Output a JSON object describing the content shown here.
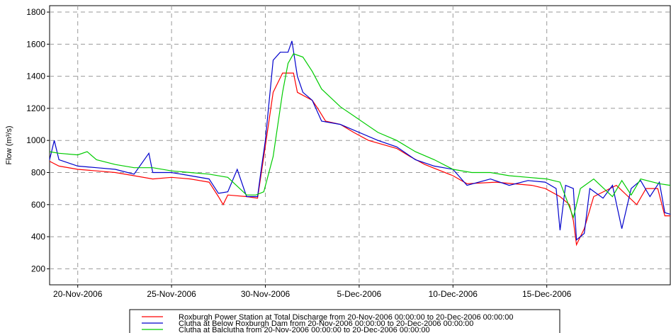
{
  "chart_data": {
    "type": "line",
    "ylabel": "Flow (m³/s)",
    "xlim": [
      "2006-11-18 12:00",
      "2006-12-21 14:00"
    ],
    "xticks": [
      {
        "value": "2006-11-20 00:00",
        "label": "20-Nov-2006"
      },
      {
        "value": "2006-11-25 00:00",
        "label": "25-Nov-2006"
      },
      {
        "value": "2006-11-30 00:00",
        "label": "30-Nov-2006"
      },
      {
        "value": "2006-12-05 00:00",
        "label": "5-Dec-2006"
      },
      {
        "value": "2006-12-10 00:00",
        "label": "10-Dec-2006"
      },
      {
        "value": "2006-12-15 00:00",
        "label": "15-Dec-2006"
      }
    ],
    "ylim": [
      100,
      1840
    ],
    "yticks": [
      200,
      400,
      600,
      800,
      1000,
      1200,
      1400,
      1600,
      1800
    ],
    "grid": true,
    "series": [
      {
        "name": "Roxburgh Power Station at Total Discharge from 20-Nov-2006 00:00:00 to 20-Dec-2006 00:00:00",
        "color": "#ff0000",
        "x": [
          "2006-11-18 12:00",
          "2006-11-19 00:00",
          "2006-11-20 00:00",
          "2006-11-21 00:00",
          "2006-11-22 00:00",
          "2006-11-23 00:00",
          "2006-11-24 00:00",
          "2006-11-25 00:00",
          "2006-11-26 00:00",
          "2006-11-27 00:00",
          "2006-11-27 12:00",
          "2006-11-27 18:00",
          "2006-11-28 00:00",
          "2006-11-29 00:00",
          "2006-11-29 14:00",
          "2006-11-29 22:00",
          "2006-11-30 10:00",
          "2006-11-30 22:00",
          "2006-12-01 12:00",
          "2006-12-01 17:00",
          "2006-12-02 12:00",
          "2006-12-02 19:00",
          "2006-12-03 05:00",
          "2006-12-04 00:00",
          "2006-12-04 17:00",
          "2006-12-05 12:00",
          "2006-12-07 00:00",
          "2006-12-07 17:00",
          "2006-12-08 12:00",
          "2006-12-10 00:00",
          "2006-12-10 18:00",
          "2006-12-12 07:00",
          "2006-12-14 05:00",
          "2006-12-14 22:00",
          "2006-12-15 17:00",
          "2006-12-16 05:00",
          "2006-12-16 10:00",
          "2006-12-16 14:00",
          "2006-12-17 00:00",
          "2006-12-17 12:00",
          "2006-12-18 17:00",
          "2006-12-19 19:00",
          "2006-12-20 07:00",
          "2006-12-20 22:00",
          "2006-12-21 07:00",
          "2006-12-21 14:00"
        ],
        "values": [
          870,
          840,
          820,
          810,
          800,
          780,
          760,
          770,
          760,
          740,
          650,
          600,
          660,
          650,
          640,
          900,
          1300,
          1420,
          1420,
          1300,
          1250,
          1200,
          1120,
          1100,
          1050,
          1000,
          950,
          900,
          850,
          780,
          730,
          740,
          720,
          700,
          650,
          600,
          500,
          350,
          450,
          650,
          720,
          600,
          700,
          700,
          530,
          530
        ]
      },
      {
        "name": "Clutha at Below Roxburgh Dam from 20-Nov-2006 00:00:00 to 20-Dec-2006 00:00:00",
        "color": "#0000cc",
        "x": [
          "2006-11-18 12:00",
          "2006-11-18 18:00",
          "2006-11-19 00:00",
          "2006-11-20 00:00",
          "2006-11-21 00:00",
          "2006-11-22 00:00",
          "2006-11-23 00:00",
          "2006-11-23 19:00",
          "2006-11-24 00:00",
          "2006-11-25 00:00",
          "2006-11-26 00:00",
          "2006-11-27 00:00",
          "2006-11-27 12:00",
          "2006-11-28 00:00",
          "2006-11-28 12:00",
          "2006-11-29 00:00",
          "2006-11-29 14:00",
          "2006-11-29 19:00",
          "2006-11-30 00:00",
          "2006-11-30 10:00",
          "2006-11-30 19:00",
          "2006-12-01 05:00",
          "2006-12-01 10:00",
          "2006-12-01 17:00",
          "2006-12-02 00:00",
          "2006-12-02 12:00",
          "2006-12-03 00:00",
          "2006-12-04 00:00",
          "2006-12-05 00:00",
          "2006-12-06 00:00",
          "2006-12-07 00:00",
          "2006-12-08 00:00",
          "2006-12-09 00:00",
          "2006-12-10 00:00",
          "2006-12-10 18:00",
          "2006-12-12 00:00",
          "2006-12-13 00:00",
          "2006-12-14 00:00",
          "2006-12-14 22:00",
          "2006-12-15 12:00",
          "2006-12-15 17:00",
          "2006-12-16 00:00",
          "2006-12-16 10:00",
          "2006-12-16 14:00",
          "2006-12-17 00:00",
          "2006-12-17 07:00",
          "2006-12-18 00:00",
          "2006-12-18 12:00",
          "2006-12-19 00:00",
          "2006-12-19 12:00",
          "2006-12-20 00:00",
          "2006-12-20 12:00",
          "2006-12-21 00:00",
          "2006-12-21 07:00",
          "2006-12-21 14:00"
        ],
        "values": [
          880,
          1000,
          880,
          840,
          830,
          820,
          790,
          920,
          800,
          800,
          780,
          760,
          670,
          680,
          820,
          650,
          650,
          830,
          1000,
          1500,
          1550,
          1550,
          1620,
          1400,
          1300,
          1250,
          1120,
          1100,
          1050,
          1000,
          960,
          880,
          840,
          820,
          720,
          760,
          720,
          750,
          740,
          700,
          440,
          720,
          700,
          380,
          420,
          700,
          640,
          720,
          450,
          700,
          750,
          650,
          740,
          550,
          540
        ]
      },
      {
        "name": "Clutha at Balclutha from 20-Nov-2006 00:00:00 to 20-Dec-2006 00:00:00",
        "color": "#00cc00",
        "x": [
          "2006-11-18 12:00",
          "2006-11-19 00:00",
          "2006-11-20 00:00",
          "2006-11-20 12:00",
          "2006-11-21 00:00",
          "2006-11-22 00:00",
          "2006-11-23 00:00",
          "2006-11-24 00:00",
          "2006-11-25 00:00",
          "2006-11-26 00:00",
          "2006-11-27 00:00",
          "2006-11-28 00:00",
          "2006-11-29 00:00",
          "2006-11-29 12:00",
          "2006-11-29 22:00",
          "2006-11-30 10:00",
          "2006-11-30 22:00",
          "2006-12-01 05:00",
          "2006-12-01 12:00",
          "2006-12-02 00:00",
          "2006-12-02 12:00",
          "2006-12-03 00:00",
          "2006-12-04 00:00",
          "2006-12-05 00:00",
          "2006-12-06 00:00",
          "2006-12-07 00:00",
          "2006-12-08 00:00",
          "2006-12-09 00:00",
          "2006-12-10 00:00",
          "2006-12-11 00:00",
          "2006-12-12 00:00",
          "2006-12-13 00:00",
          "2006-12-14 00:00",
          "2006-12-15 00:00",
          "2006-12-15 17:00",
          "2006-12-16 10:00",
          "2006-12-16 19:00",
          "2006-12-17 12:00",
          "2006-12-18 12:00",
          "2006-12-19 00:00",
          "2006-12-19 12:00",
          "2006-12-20 00:00",
          "2006-12-21 00:00",
          "2006-12-21 14:00"
        ],
        "values": [
          930,
          920,
          910,
          930,
          880,
          850,
          830,
          830,
          810,
          800,
          790,
          770,
          660,
          660,
          680,
          900,
          1300,
          1480,
          1540,
          1520,
          1430,
          1320,
          1210,
          1130,
          1050,
          1000,
          930,
          880,
          820,
          800,
          800,
          780,
          770,
          760,
          740,
          520,
          700,
          760,
          650,
          750,
          660,
          760,
          730,
          720
        ]
      }
    ]
  }
}
